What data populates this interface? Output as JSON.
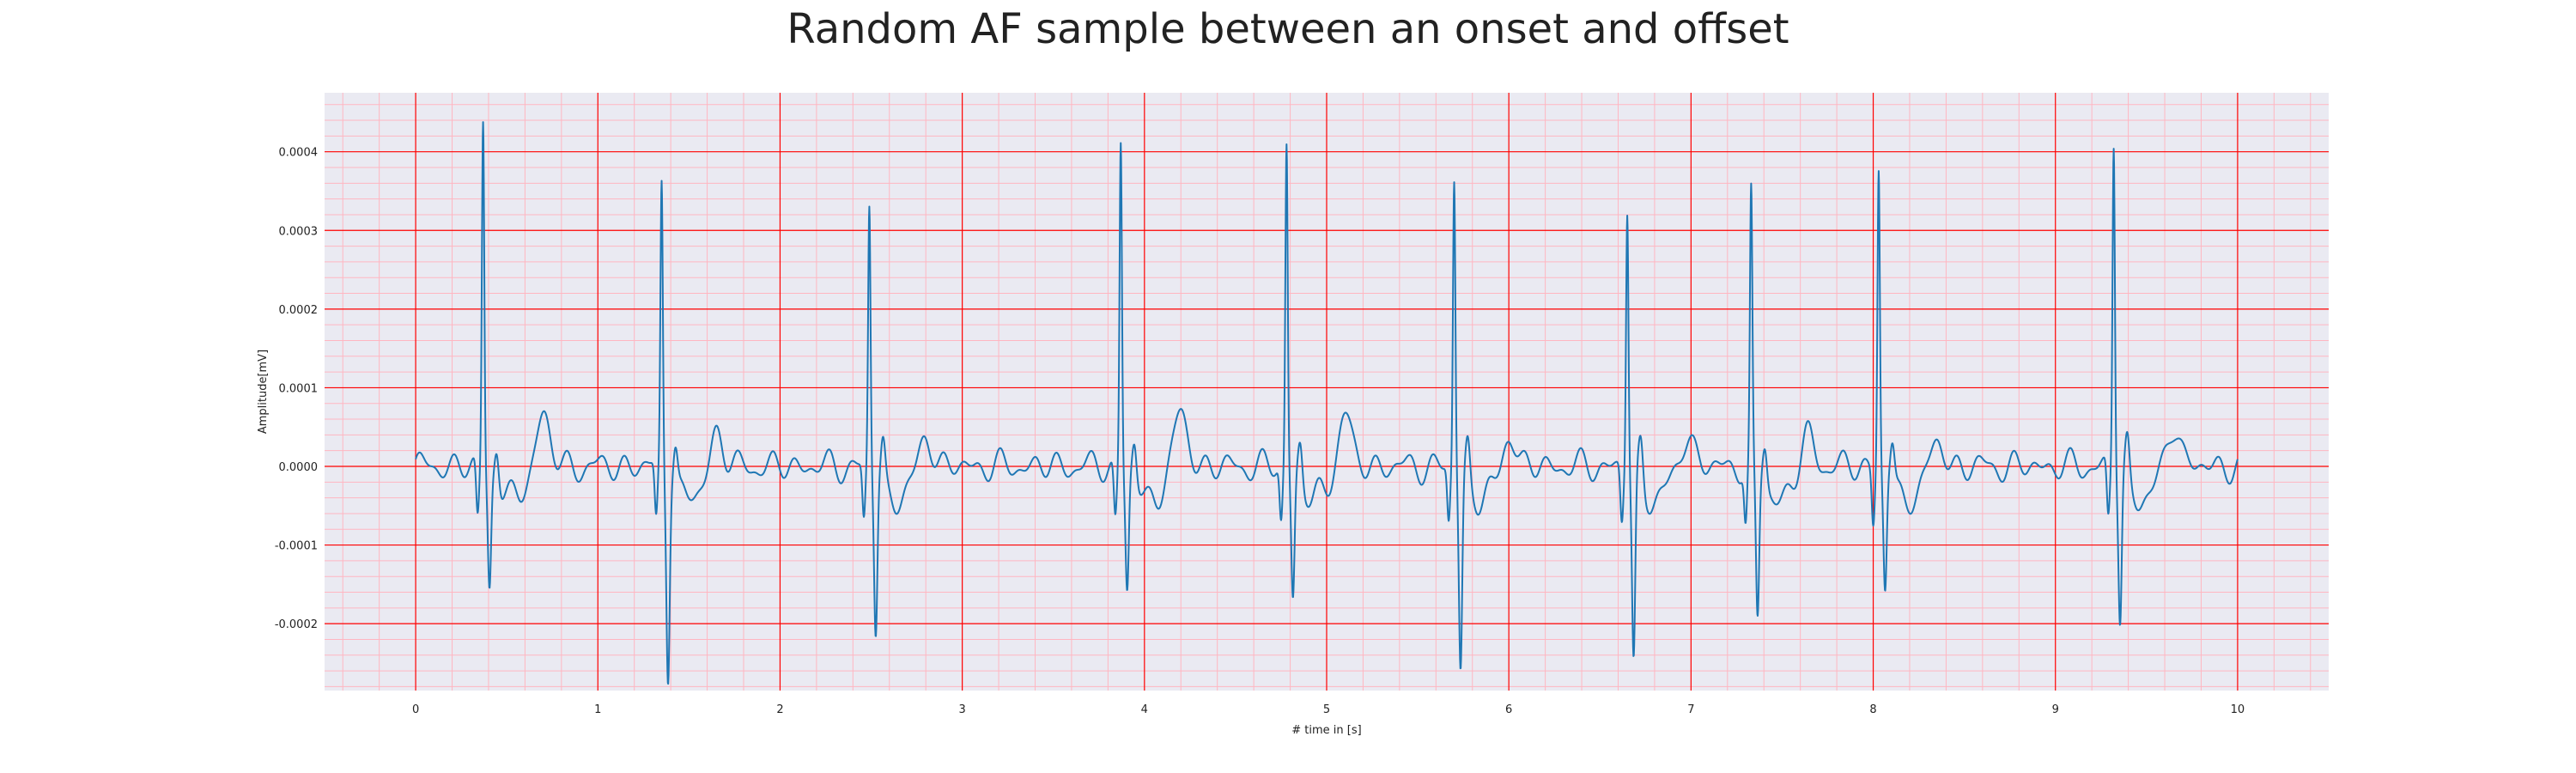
{
  "chart_data": {
    "type": "line",
    "title": "Random AF sample between an onset and offset",
    "xlabel": "# time in [s]",
    "ylabel": "Amplitude[mV]",
    "xlim": [
      -0.5,
      10.5
    ],
    "ylim": [
      -0.000285,
      0.000475
    ],
    "xticks": [
      0,
      1,
      2,
      3,
      4,
      5,
      6,
      7,
      8,
      9,
      10
    ],
    "xtick_labels": [
      "0",
      "1",
      "2",
      "3",
      "4",
      "5",
      "6",
      "7",
      "8",
      "9",
      "10"
    ],
    "yticks": [
      -0.0002,
      -0.0001,
      0.0,
      0.0001,
      0.0002,
      0.0003,
      0.0004
    ],
    "ytick_labels": [
      "-0.0002",
      "-0.0001",
      "0.0000",
      "0.0001",
      "0.0002",
      "0.0003",
      "0.0004"
    ],
    "grid": "major and minor",
    "colors": {
      "background": "#eaeaf2",
      "major_grid": "#ff0000",
      "minor_grid": "#ffb6c1",
      "series": "#1f77b4"
    },
    "series": [
      {
        "beats": [
          {
            "t": 0.37,
            "r": 0.00044,
            "s": -0.000145
          },
          {
            "t": 1.35,
            "r": 0.00036,
            "s": -0.00025
          },
          {
            "t": 2.49,
            "r": 0.00033,
            "s": -0.0002
          },
          {
            "t": 3.87,
            "r": 0.000415,
            "s": -0.00015
          },
          {
            "t": 4.78,
            "r": 0.00041,
            "s": -0.00016
          },
          {
            "t": 5.7,
            "r": 0.000365,
            "s": -0.00025
          },
          {
            "t": 6.65,
            "r": 0.00033,
            "s": -0.000245
          },
          {
            "t": 7.33,
            "r": 0.00034,
            "s": -0.00019
          },
          {
            "t": 8.03,
            "r": 0.00038,
            "s": -0.00015
          },
          {
            "t": 9.32,
            "r": 0.000415,
            "s": -0.00019
          }
        ],
        "t_waves": [
          {
            "t": 0.7,
            "a": 6.8e-05
          },
          {
            "t": 1.65,
            "a": 4.5e-05
          },
          {
            "t": 2.8,
            "a": 4e-05
          },
          {
            "t": 4.2,
            "a": 7e-05
          },
          {
            "t": 5.1,
            "a": 6.8e-05
          },
          {
            "t": 6.0,
            "a": 4.3e-05
          },
          {
            "t": 6.98,
            "a": 4e-05
          },
          {
            "t": 7.64,
            "a": 4e-05
          },
          {
            "t": 8.35,
            "a": 3e-05
          },
          {
            "t": 9.65,
            "a": 5.5e-05
          }
        ]
      }
    ]
  }
}
